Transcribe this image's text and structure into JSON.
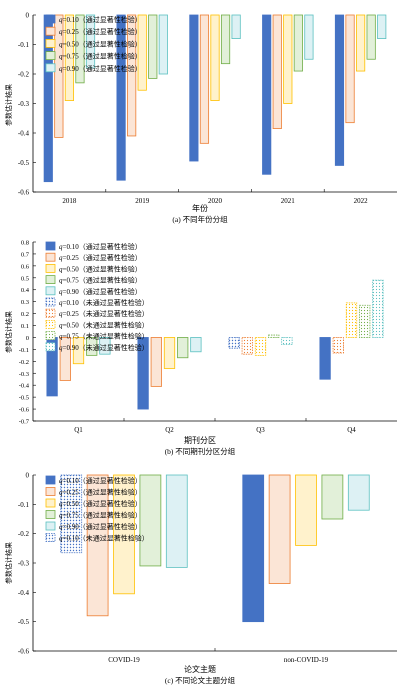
{
  "colors": {
    "q010": "#4472C4",
    "q025": "#ED7D31",
    "q050": "#FFC000",
    "q075": "#70AD47",
    "q090": "#5BC0C0",
    "q010_fill": "#4472C4",
    "q025_fill": "#FBE5D6",
    "q050_fill": "#FFF2CC",
    "q075_fill": "#E2F0D9",
    "q090_fill": "#DDF1F4"
  },
  "chart_data": [
    {
      "type": "bar",
      "title": "(a) 不同年份分组",
      "xlabel": "年份",
      "ylabel": "参数估计结果",
      "categories": [
        "2018",
        "2019",
        "2020",
        "2021",
        "2022"
      ],
      "ylim": [
        -0.6,
        0
      ],
      "yticks": [
        "0",
        "-0.1",
        "-0.2",
        "-0.3",
        "-0.4",
        "-0.5",
        "-0.6"
      ],
      "legend_position": "top-left",
      "series": [
        {
          "name": "q=0.10（通过显著性检验）",
          "q": "q",
          "label": "=0.10（通过显著性检验）",
          "key": "q010",
          "significant": true,
          "values": [
            -0.565,
            -0.56,
            -0.495,
            -0.54,
            -0.51
          ]
        },
        {
          "name": "q=0.25（通过显著性检验）",
          "q": "q",
          "label": "=0.25（通过显著性检验）",
          "key": "q025",
          "significant": true,
          "values": [
            -0.415,
            -0.41,
            -0.435,
            -0.385,
            -0.365
          ]
        },
        {
          "name": "q=0.50（通过显著性检验）",
          "q": "q",
          "label": "=0.50（通过显著性检验）",
          "key": "q050",
          "significant": true,
          "values": [
            -0.29,
            -0.255,
            -0.29,
            -0.3,
            -0.19
          ]
        },
        {
          "name": "q=0.75（通过显著性检验）",
          "q": "q",
          "label": "=0.75（通过显著性检验）",
          "key": "q075",
          "significant": true,
          "values": [
            -0.23,
            -0.215,
            -0.165,
            -0.19,
            -0.15
          ]
        },
        {
          "name": "q=0.90（通过显著性检验）",
          "q": "q",
          "label": "=0.90（通过显著性检验）",
          "key": "q090",
          "significant": true,
          "values": [
            -0.18,
            -0.2,
            -0.08,
            -0.15,
            -0.08
          ]
        }
      ]
    },
    {
      "type": "bar",
      "title": "(b) 不同期刊分区分组",
      "xlabel": "期刊分区",
      "ylabel": "参数估计结果",
      "categories": [
        "Q1",
        "Q2",
        "Q3",
        "Q4"
      ],
      "ylim": [
        -0.7,
        0.8
      ],
      "yticks": [
        "0.8",
        "0.7",
        "0.6",
        "0.5",
        "0.4",
        "0.3",
        "0.2",
        "0.1",
        "0",
        "-0.1",
        "-0.2",
        "-0.3",
        "-0.4",
        "-0.5",
        "-0.6",
        "-0.7"
      ],
      "legend_position": "top-left",
      "series": [
        {
          "name": "q=0.10",
          "q": "q",
          "label": "=0.10（通过显著性检验）",
          "key": "q010",
          "significant": true
        },
        {
          "name": "q=0.25",
          "q": "q",
          "label": "=0.25（通过显著性检验）",
          "key": "q025",
          "significant": true
        },
        {
          "name": "q=0.50",
          "q": "q",
          "label": "=0.50（通过显著性检验）",
          "key": "q050",
          "significant": true
        },
        {
          "name": "q=0.75",
          "q": "q",
          "label": "=0.75（通过显著性检验）",
          "key": "q075",
          "significant": true
        },
        {
          "name": "q=0.90",
          "q": "q",
          "label": "=0.90（通过显著性检验）",
          "key": "q090",
          "significant": true
        },
        {
          "name": "q=0.10 n.s.",
          "q": "q",
          "label": "=0.10（未通过显著性检验）",
          "key": "q010",
          "significant": false
        },
        {
          "name": "q=0.25 n.s.",
          "q": "q",
          "label": "=0.25（未通过显著性检验）",
          "key": "q025",
          "significant": false
        },
        {
          "name": "q=0.50 n.s.",
          "q": "q",
          "label": "=0.50（未通过显著性检验）",
          "key": "q050",
          "significant": false
        },
        {
          "name": "q=0.75 n.s.",
          "q": "q",
          "label": "=0.75（未通过显著性检验）",
          "key": "q075",
          "significant": false
        },
        {
          "name": "q=0.90 n.s.",
          "q": "q",
          "label": "=0.90（未通过显著性检验）",
          "key": "q090",
          "significant": false
        }
      ],
      "bars": [
        {
          "category": "Q1",
          "key": "q010",
          "significant": true,
          "value": -0.49
        },
        {
          "category": "Q1",
          "key": "q025",
          "significant": true,
          "value": -0.36
        },
        {
          "category": "Q1",
          "key": "q050",
          "significant": true,
          "value": -0.22
        },
        {
          "category": "Q1",
          "key": "q075",
          "significant": true,
          "value": -0.15
        },
        {
          "category": "Q1",
          "key": "q090",
          "significant": true,
          "value": -0.14
        },
        {
          "category": "Q2",
          "key": "q010",
          "significant": true,
          "value": -0.6
        },
        {
          "category": "Q2",
          "key": "q025",
          "significant": true,
          "value": -0.41
        },
        {
          "category": "Q2",
          "key": "q050",
          "significant": true,
          "value": -0.26
        },
        {
          "category": "Q2",
          "key": "q075",
          "significant": true,
          "value": -0.17
        },
        {
          "category": "Q2",
          "key": "q090",
          "significant": true,
          "value": -0.12
        },
        {
          "category": "Q3",
          "key": "q010",
          "significant": false,
          "value": -0.09
        },
        {
          "category": "Q3",
          "key": "q025",
          "significant": false,
          "value": -0.14
        },
        {
          "category": "Q3",
          "key": "q050",
          "significant": false,
          "value": -0.15
        },
        {
          "category": "Q3",
          "key": "q075",
          "significant": false,
          "value": 0.02
        },
        {
          "category": "Q3",
          "key": "q090",
          "significant": false,
          "value": -0.06
        },
        {
          "category": "Q4",
          "key": "q010",
          "significant": true,
          "value": -0.35
        },
        {
          "category": "Q4",
          "key": "q025",
          "significant": false,
          "value": -0.13
        },
        {
          "category": "Q4",
          "key": "q050",
          "significant": false,
          "value": 0.29
        },
        {
          "category": "Q4",
          "key": "q075",
          "significant": false,
          "value": 0.27
        },
        {
          "category": "Q4",
          "key": "q090",
          "significant": false,
          "value": 0.48
        }
      ]
    },
    {
      "type": "bar",
      "title": "(c) 不同论文主题分组",
      "xlabel": "论文主题",
      "ylabel": "参数估计结果",
      "categories": [
        "COVID-19",
        "non-COVID-19"
      ],
      "ylim": [
        -0.6,
        0
      ],
      "yticks": [
        "0",
        "-0.1",
        "-0.2",
        "-0.3",
        "-0.4",
        "-0.5",
        "-0.6"
      ],
      "legend_position": "top-left",
      "series": [
        {
          "name": "q=0.10（通过显著性检验）",
          "q": "q",
          "label": "=0.10（通过显著性检验）",
          "key": "q010",
          "significant": true
        },
        {
          "name": "q=0.25（通过显著性检验）",
          "q": "q",
          "label": "=0.25（通过显著性检验）",
          "key": "q025",
          "significant": true
        },
        {
          "name": "q=0.50（通过显著性检验）",
          "q": "q",
          "label": "=0.50（通过显著性检验）",
          "key": "q050",
          "significant": true
        },
        {
          "name": "q=0.75（通过显著性检验）",
          "q": "q",
          "label": "=0.75（通过显著性检验）",
          "key": "q075",
          "significant": true
        },
        {
          "name": "q=0.90（通过显著性检验）",
          "q": "q",
          "label": "=0.90（通过显著性检验）",
          "key": "q090",
          "significant": true
        },
        {
          "name": "q=0.10（未通过显著性检验）",
          "q": "q",
          "label": "=0.10（未通过显著性检验）",
          "key": "q010",
          "significant": false
        }
      ],
      "bars": [
        {
          "category": "COVID-19",
          "key": "q010",
          "significant": false,
          "value": -0.265
        },
        {
          "category": "COVID-19",
          "key": "q025",
          "significant": true,
          "value": -0.48
        },
        {
          "category": "COVID-19",
          "key": "q050",
          "significant": true,
          "value": -0.405
        },
        {
          "category": "COVID-19",
          "key": "q075",
          "significant": true,
          "value": -0.31
        },
        {
          "category": "COVID-19",
          "key": "q090",
          "significant": true,
          "value": -0.315
        },
        {
          "category": "non-COVID-19",
          "key": "q010",
          "significant": true,
          "value": -0.5
        },
        {
          "category": "non-COVID-19",
          "key": "q025",
          "significant": true,
          "value": -0.37
        },
        {
          "category": "non-COVID-19",
          "key": "q050",
          "significant": true,
          "value": -0.24
        },
        {
          "category": "non-COVID-19",
          "key": "q075",
          "significant": true,
          "value": -0.15
        },
        {
          "category": "non-COVID-19",
          "key": "q090",
          "significant": true,
          "value": -0.12
        }
      ]
    }
  ]
}
